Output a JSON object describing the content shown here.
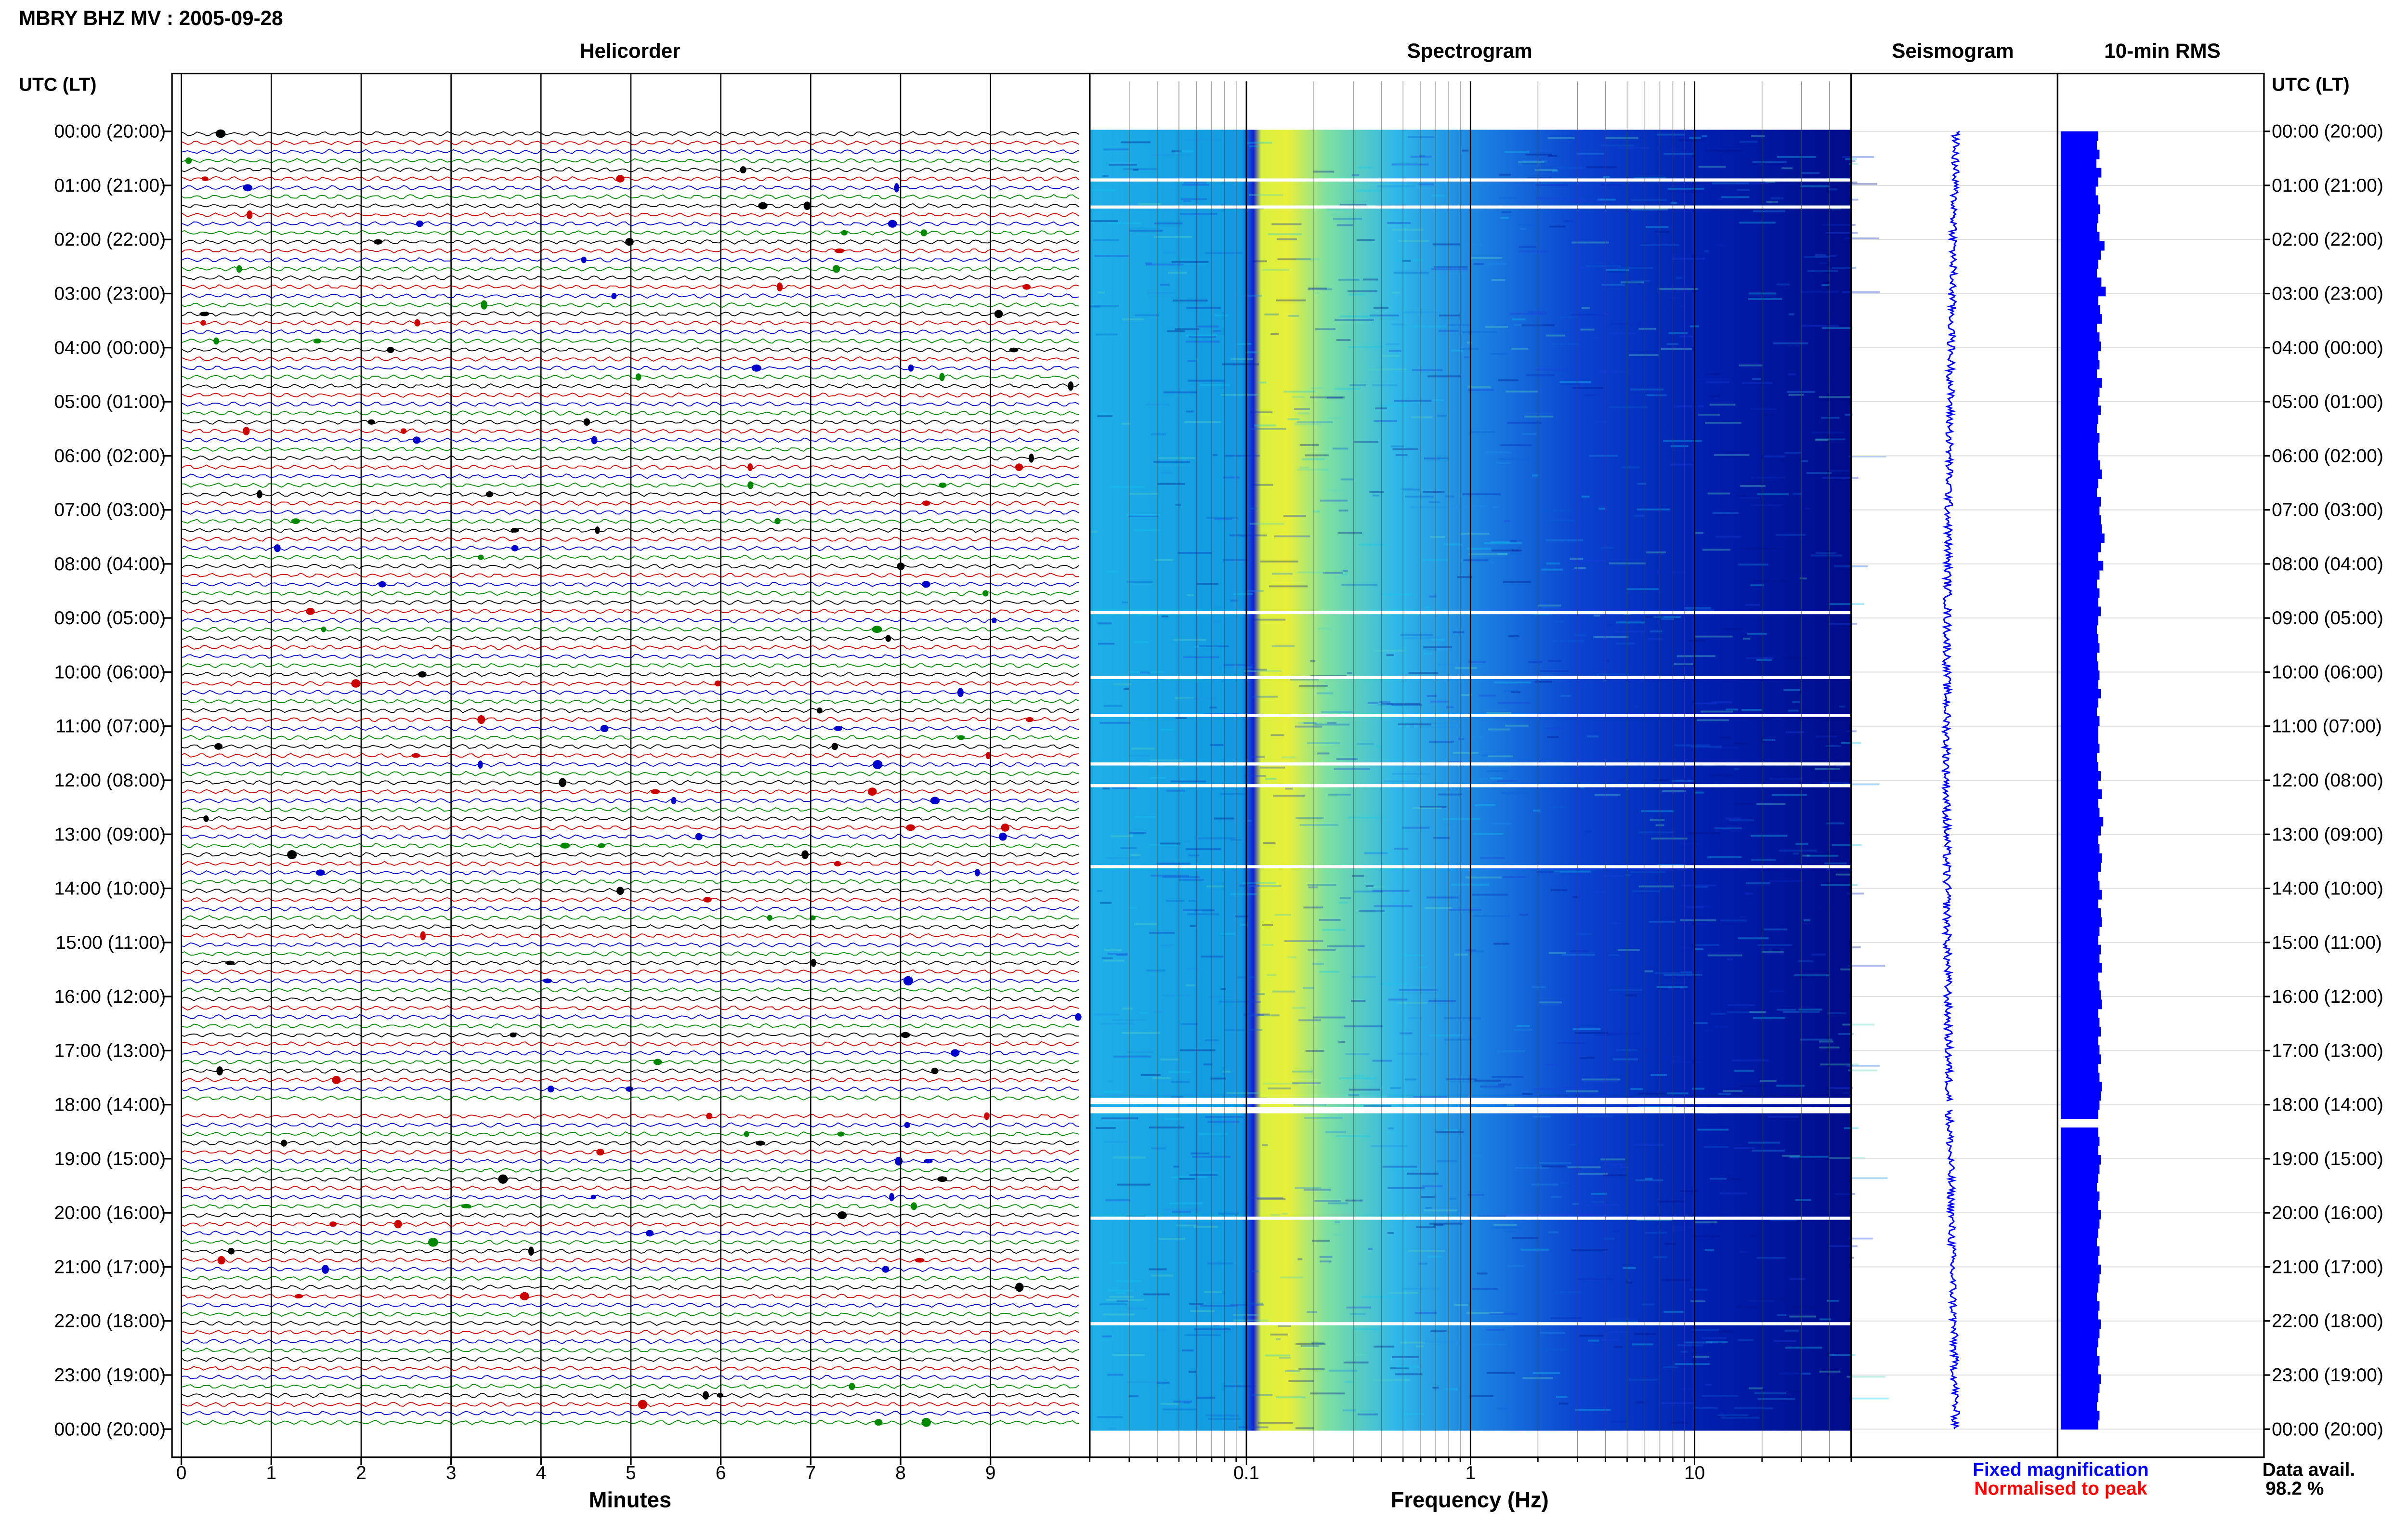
{
  "header": {
    "title": "MBRY BHZ MV : 2005-09-28",
    "panel_titles": [
      "Helicorder",
      "Spectrogram",
      "Seismogram",
      "10-min RMS"
    ],
    "axis_header_left": "UTC (LT)",
    "axis_header_right": "UTC (LT)"
  },
  "chart_data": [
    {
      "type": "line",
      "title": "Helicorder",
      "xlabel": "Minutes",
      "ylabel": "UTC (LT)",
      "xlim": [
        0,
        10
      ],
      "x_ticks": [
        "0",
        "1",
        "2",
        "3",
        "4",
        "5",
        "6",
        "7",
        "8",
        "9"
      ],
      "y_ticks": [
        "00:00 (20:00)",
        "01:00 (21:00)",
        "02:00 (22:00)",
        "03:00 (23:00)",
        "04:00 (00:00)",
        "05:00 (01:00)",
        "06:00 (02:00)",
        "07:00 (03:00)",
        "08:00 (04:00)",
        "09:00 (05:00)",
        "10:00 (06:00)",
        "11:00 (07:00)",
        "12:00 (08:00)",
        "13:00 (09:00)",
        "14:00 (10:00)",
        "15:00 (11:00)",
        "16:00 (12:00)",
        "17:00 (13:00)",
        "18:00 (14:00)",
        "19:00 (15:00)",
        "20:00 (16:00)",
        "21:00 (17:00)",
        "22:00 (18:00)",
        "23:00 (19:00)",
        "00:00 (20:00)"
      ],
      "trace_colors": [
        "#000000",
        "#cc0000",
        "#0000cc",
        "#008800"
      ],
      "lines_per_hour": 6,
      "data_gap_hours": [
        17.93,
        18.1
      ]
    },
    {
      "type": "heatmap",
      "title": "Spectrogram",
      "xlabel": "Frequency (Hz)",
      "x_scale": "log",
      "xlim": [
        0.02,
        50
      ],
      "x_ticks": [
        "0.1",
        "1",
        "10"
      ],
      "gap_hours": [
        0.9,
        1.4,
        8.9,
        10.1,
        10.8,
        11.7,
        12.1,
        13.6,
        17.93,
        18.1,
        20.1,
        22.05
      ]
    },
    {
      "type": "line",
      "title": "Seismogram"
    },
    {
      "type": "bar",
      "title": "10-min RMS",
      "orientation": "horizontal",
      "values": [
        0.6,
        0.58,
        0.62,
        0.57,
        0.65,
        0.6,
        0.56,
        0.6,
        0.63,
        0.6,
        0.58,
        0.62,
        0.7,
        0.64,
        0.6,
        0.58,
        0.65,
        0.72,
        0.6,
        0.63,
        0.66,
        0.58,
        0.62,
        0.64,
        0.6,
        0.62,
        0.58,
        0.66,
        0.62,
        0.6,
        0.64,
        0.6,
        0.58,
        0.62,
        0.6,
        0.6,
        0.63,
        0.66,
        0.6,
        0.58,
        0.64,
        0.62,
        0.64,
        0.66,
        0.7,
        0.64,
        0.6,
        0.68,
        0.62,
        0.58,
        0.62,
        0.6,
        0.64,
        0.6,
        0.58,
        0.6,
        0.62,
        0.58,
        0.6,
        0.62,
        0.6,
        0.64,
        0.6,
        0.58,
        0.62,
        0.6,
        0.6,
        0.62,
        0.58,
        0.6,
        0.64,
        0.6,
        0.66,
        0.6,
        0.62,
        0.68,
        0.64,
        0.6,
        0.62,
        0.66,
        0.64,
        0.6,
        0.62,
        0.66,
        0.6,
        0.64,
        0.66,
        0.62,
        0.6,
        0.64,
        0.62,
        0.66,
        0.6,
        0.62,
        0.64,
        0.66,
        0.6,
        0.62,
        0.64,
        0.6,
        0.62,
        0.64,
        0.6,
        0.62,
        0.66,
        0.64,
        0.62,
        0.6,
        0.58,
        0.6,
        0.62,
        0.6,
        0.64,
        0.62,
        0.6,
        0.58,
        0.62,
        0.6,
        0.64,
        0.62,
        0.6,
        0.58,
        0.62,
        0.6,
        0.64,
        0.62,
        0.6,
        0.58,
        0.62,
        0.6,
        0.64,
        0.62,
        0.6,
        0.58,
        0.62,
        0.6,
        0.64,
        0.62,
        0.6,
        0.58,
        0.62,
        0.6
      ]
    }
  ],
  "footer": {
    "legend_fixed": "Fixed magnification",
    "legend_fixed_color": "#0000ff",
    "legend_normalised": "Normalised to peak",
    "legend_normalised_color": "#ff0000",
    "data_avail_label": "Data avail.",
    "data_avail_value": "98.2 %"
  }
}
